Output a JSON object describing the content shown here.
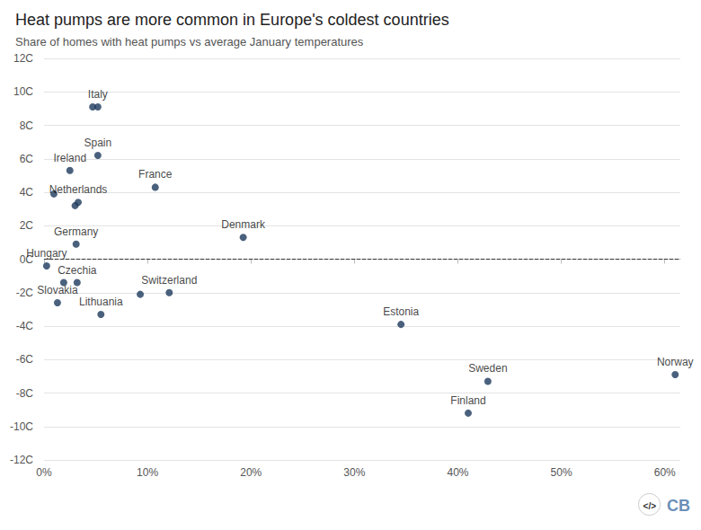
{
  "chart_data": {
    "type": "scatter",
    "title": "Heat pumps are more common in Europe's coldest countries",
    "subtitle": "Share of homes with heat pumps vs average January temperatures",
    "x": [
      4.7,
      5.2,
      5.2,
      2.5,
      10.75,
      0.95,
      3.0,
      3.3,
      3.1,
      19.25,
      0.25,
      1.9,
      3.2,
      1.3,
      12.1,
      9.3,
      5.5,
      34.5,
      42.9,
      41.0,
      61.0
    ],
    "values": [
      9.1,
      9.1,
      6.2,
      5.3,
      4.3,
      3.9,
      3.2,
      3.4,
      0.9,
      1.3,
      -0.4,
      -1.4,
      -1.4,
      -2.6,
      -2.0,
      -2.1,
      -3.3,
      -3.9,
      -7.3,
      -9.2,
      -6.9
    ],
    "point_labels": [
      null,
      "Italy",
      "Spain",
      "Ireland",
      "France",
      null,
      null,
      "Netherlands",
      "Germany",
      "Denmark",
      "Hungary",
      null,
      "Czechia",
      "Slovakia",
      "Switzerland",
      null,
      "Lithuania",
      "Estonia",
      "Sweden",
      "Finland",
      "Norway"
    ],
    "color": "#1d3a5c",
    "xlim": [
      0,
      61.5
    ],
    "xticks": [
      {
        "value": 0,
        "label": "0%"
      },
      {
        "value": 10,
        "label": "10%"
      },
      {
        "value": 20,
        "label": "20%"
      },
      {
        "value": 30,
        "label": "30%"
      },
      {
        "value": 40,
        "label": "40%"
      },
      {
        "value": 50,
        "label": "50%"
      },
      {
        "value": 60,
        "label": "60%"
      }
    ],
    "ylim": [
      -12,
      12
    ],
    "yticks": [
      {
        "value": -12,
        "label": "-12C"
      },
      {
        "value": -10,
        "label": "-10C"
      },
      {
        "value": -8,
        "label": "-8C"
      },
      {
        "value": -6,
        "label": "-6C"
      },
      {
        "value": -4,
        "label": "-4C"
      },
      {
        "value": -2,
        "label": "-2C"
      },
      {
        "value": 0,
        "label": "0C"
      },
      {
        "value": 2,
        "label": "2C"
      },
      {
        "value": 4,
        "label": "4C"
      },
      {
        "value": 6,
        "label": "6C"
      },
      {
        "value": 8,
        "label": "8C"
      },
      {
        "value": 10,
        "label": "10C"
      },
      {
        "value": 12,
        "label": "12C"
      }
    ],
    "grid": true,
    "hlines": [
      {
        "value": 0,
        "line_style": "dashed"
      }
    ],
    "logo": [
      "</>",
      "CB"
    ]
  }
}
